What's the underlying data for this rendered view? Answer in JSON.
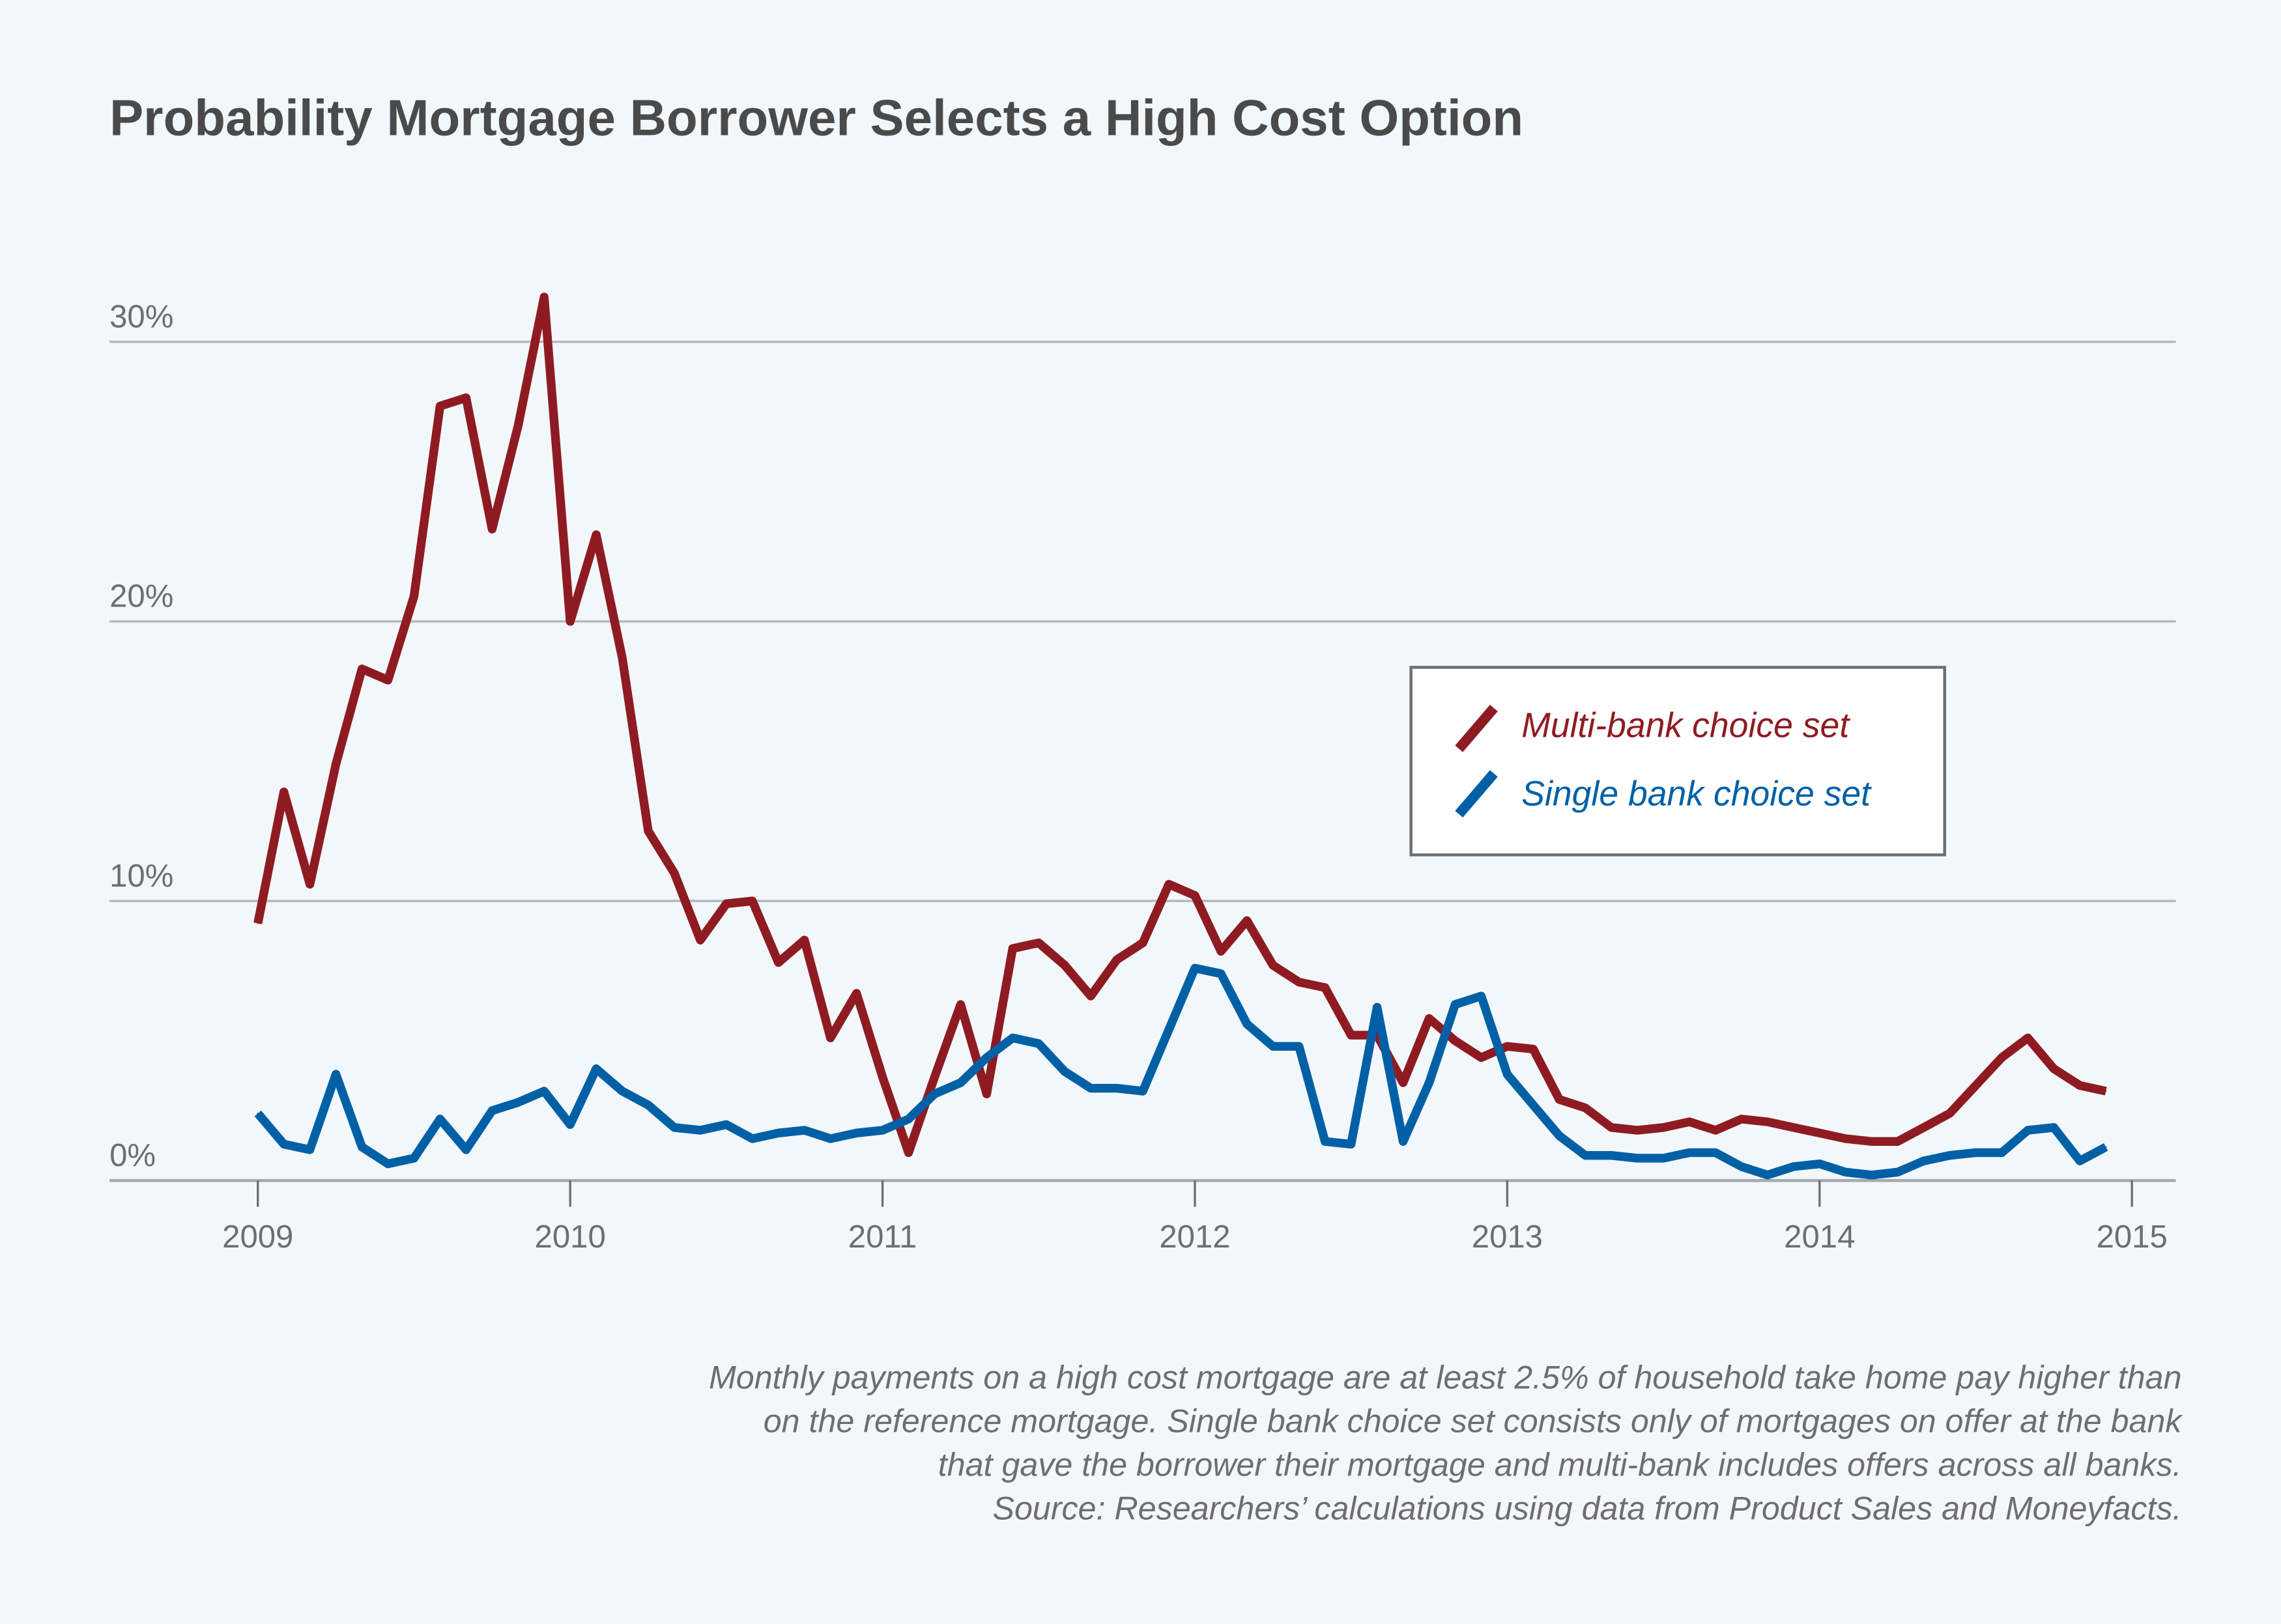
{
  "chart_data": {
    "type": "line",
    "title": "Probability Mortgage Borrower Selects a High Cost Option",
    "xlabel": "",
    "ylabel": "",
    "x_ticks": [
      "2009",
      "2010",
      "2011",
      "2012",
      "2013",
      "2014",
      "2015"
    ],
    "y_ticks": [
      {
        "value": 0,
        "label": "0%"
      },
      {
        "value": 10,
        "label": "10%"
      },
      {
        "value": 20,
        "label": "20%"
      },
      {
        "value": 30,
        "label": "30%"
      }
    ],
    "xlim": [
      "2009-01",
      "2015-01"
    ],
    "ylim": [
      0,
      30
    ],
    "grid": "horizontal",
    "legend_placement": "center-right",
    "x": [
      "2009-01",
      "2009-02",
      "2009-03",
      "2009-04",
      "2009-05",
      "2009-06",
      "2009-07",
      "2009-08",
      "2009-09",
      "2009-10",
      "2009-11",
      "2009-12",
      "2010-01",
      "2010-02",
      "2010-03",
      "2010-04",
      "2010-05",
      "2010-06",
      "2010-07",
      "2010-08",
      "2010-09",
      "2010-10",
      "2010-11",
      "2010-12",
      "2011-01",
      "2011-02",
      "2011-03",
      "2011-04",
      "2011-05",
      "2011-06",
      "2011-07",
      "2011-08",
      "2011-09",
      "2011-10",
      "2011-11",
      "2011-12",
      "2012-01",
      "2012-02",
      "2012-03",
      "2012-04",
      "2012-05",
      "2012-06",
      "2012-07",
      "2012-08",
      "2012-09",
      "2012-10",
      "2012-11",
      "2012-12",
      "2013-01",
      "2013-02",
      "2013-03",
      "2013-04",
      "2013-05",
      "2013-06",
      "2013-07",
      "2013-08",
      "2013-09",
      "2013-10",
      "2013-11",
      "2013-12",
      "2014-01",
      "2014-02",
      "2014-03",
      "2014-04",
      "2014-05",
      "2014-06",
      "2014-07",
      "2014-08",
      "2014-09",
      "2014-10",
      "2014-11",
      "2014-12"
    ],
    "series": [
      {
        "name": "Multi-bank choice set",
        "color": "#8f1b22",
        "values": [
          9.2,
          13.9,
          10.6,
          14.9,
          18.3,
          17.9,
          20.9,
          27.7,
          28.0,
          23.3,
          27.0,
          31.6,
          20.0,
          23.1,
          18.7,
          12.5,
          11.0,
          8.6,
          9.9,
          10.0,
          7.8,
          8.6,
          5.1,
          6.7,
          3.7,
          1.0,
          3.7,
          6.3,
          3.1,
          8.3,
          8.5,
          7.7,
          6.6,
          7.9,
          8.5,
          10.6,
          10.2,
          8.2,
          9.3,
          7.7,
          7.1,
          6.9,
          5.2,
          5.2,
          3.5,
          5.8,
          5.0,
          4.4,
          4.8,
          4.7,
          2.9,
          2.6,
          1.9,
          1.8,
          1.9,
          2.1,
          1.8,
          2.2,
          2.1,
          1.9,
          1.7,
          1.5,
          1.4,
          1.4,
          1.9,
          2.4,
          3.4,
          4.4,
          5.1,
          4.0,
          3.4,
          3.2
        ]
      },
      {
        "name": "Single bank choice set",
        "color": "#0060a6",
        "values": [
          2.4,
          1.3,
          1.1,
          3.8,
          1.2,
          0.6,
          0.8,
          2.2,
          1.1,
          2.5,
          2.8,
          3.2,
          2.0,
          4.0,
          3.2,
          2.7,
          1.9,
          1.8,
          2.0,
          1.5,
          1.7,
          1.8,
          1.5,
          1.7,
          1.8,
          2.2,
          3.1,
          3.5,
          4.4,
          5.1,
          4.9,
          3.9,
          3.3,
          3.3,
          3.2,
          5.4,
          7.6,
          7.4,
          5.6,
          4.8,
          4.8,
          1.4,
          1.3,
          6.2,
          1.4,
          3.5,
          6.3,
          6.6,
          3.8,
          2.7,
          1.6,
          0.9,
          0.9,
          0.8,
          0.8,
          1.0,
          1.0,
          0.5,
          0.2,
          0.5,
          0.6,
          0.3,
          0.2,
          0.3,
          0.7,
          0.9,
          1.0,
          1.0,
          1.8,
          1.9,
          0.7,
          1.2
        ]
      }
    ],
    "notes": [
      "Monthly payments on a high cost mortgage are at least 2.5% of household take home pay higher than",
      "on the reference mortgage. Single bank choice set consists only of mortgages on offer at the bank",
      "that gave the borrower their mortgage and multi-bank includes offers across all banks.",
      "Source: Researchers’ calculations using data from Product Sales and Moneyfacts."
    ]
  }
}
